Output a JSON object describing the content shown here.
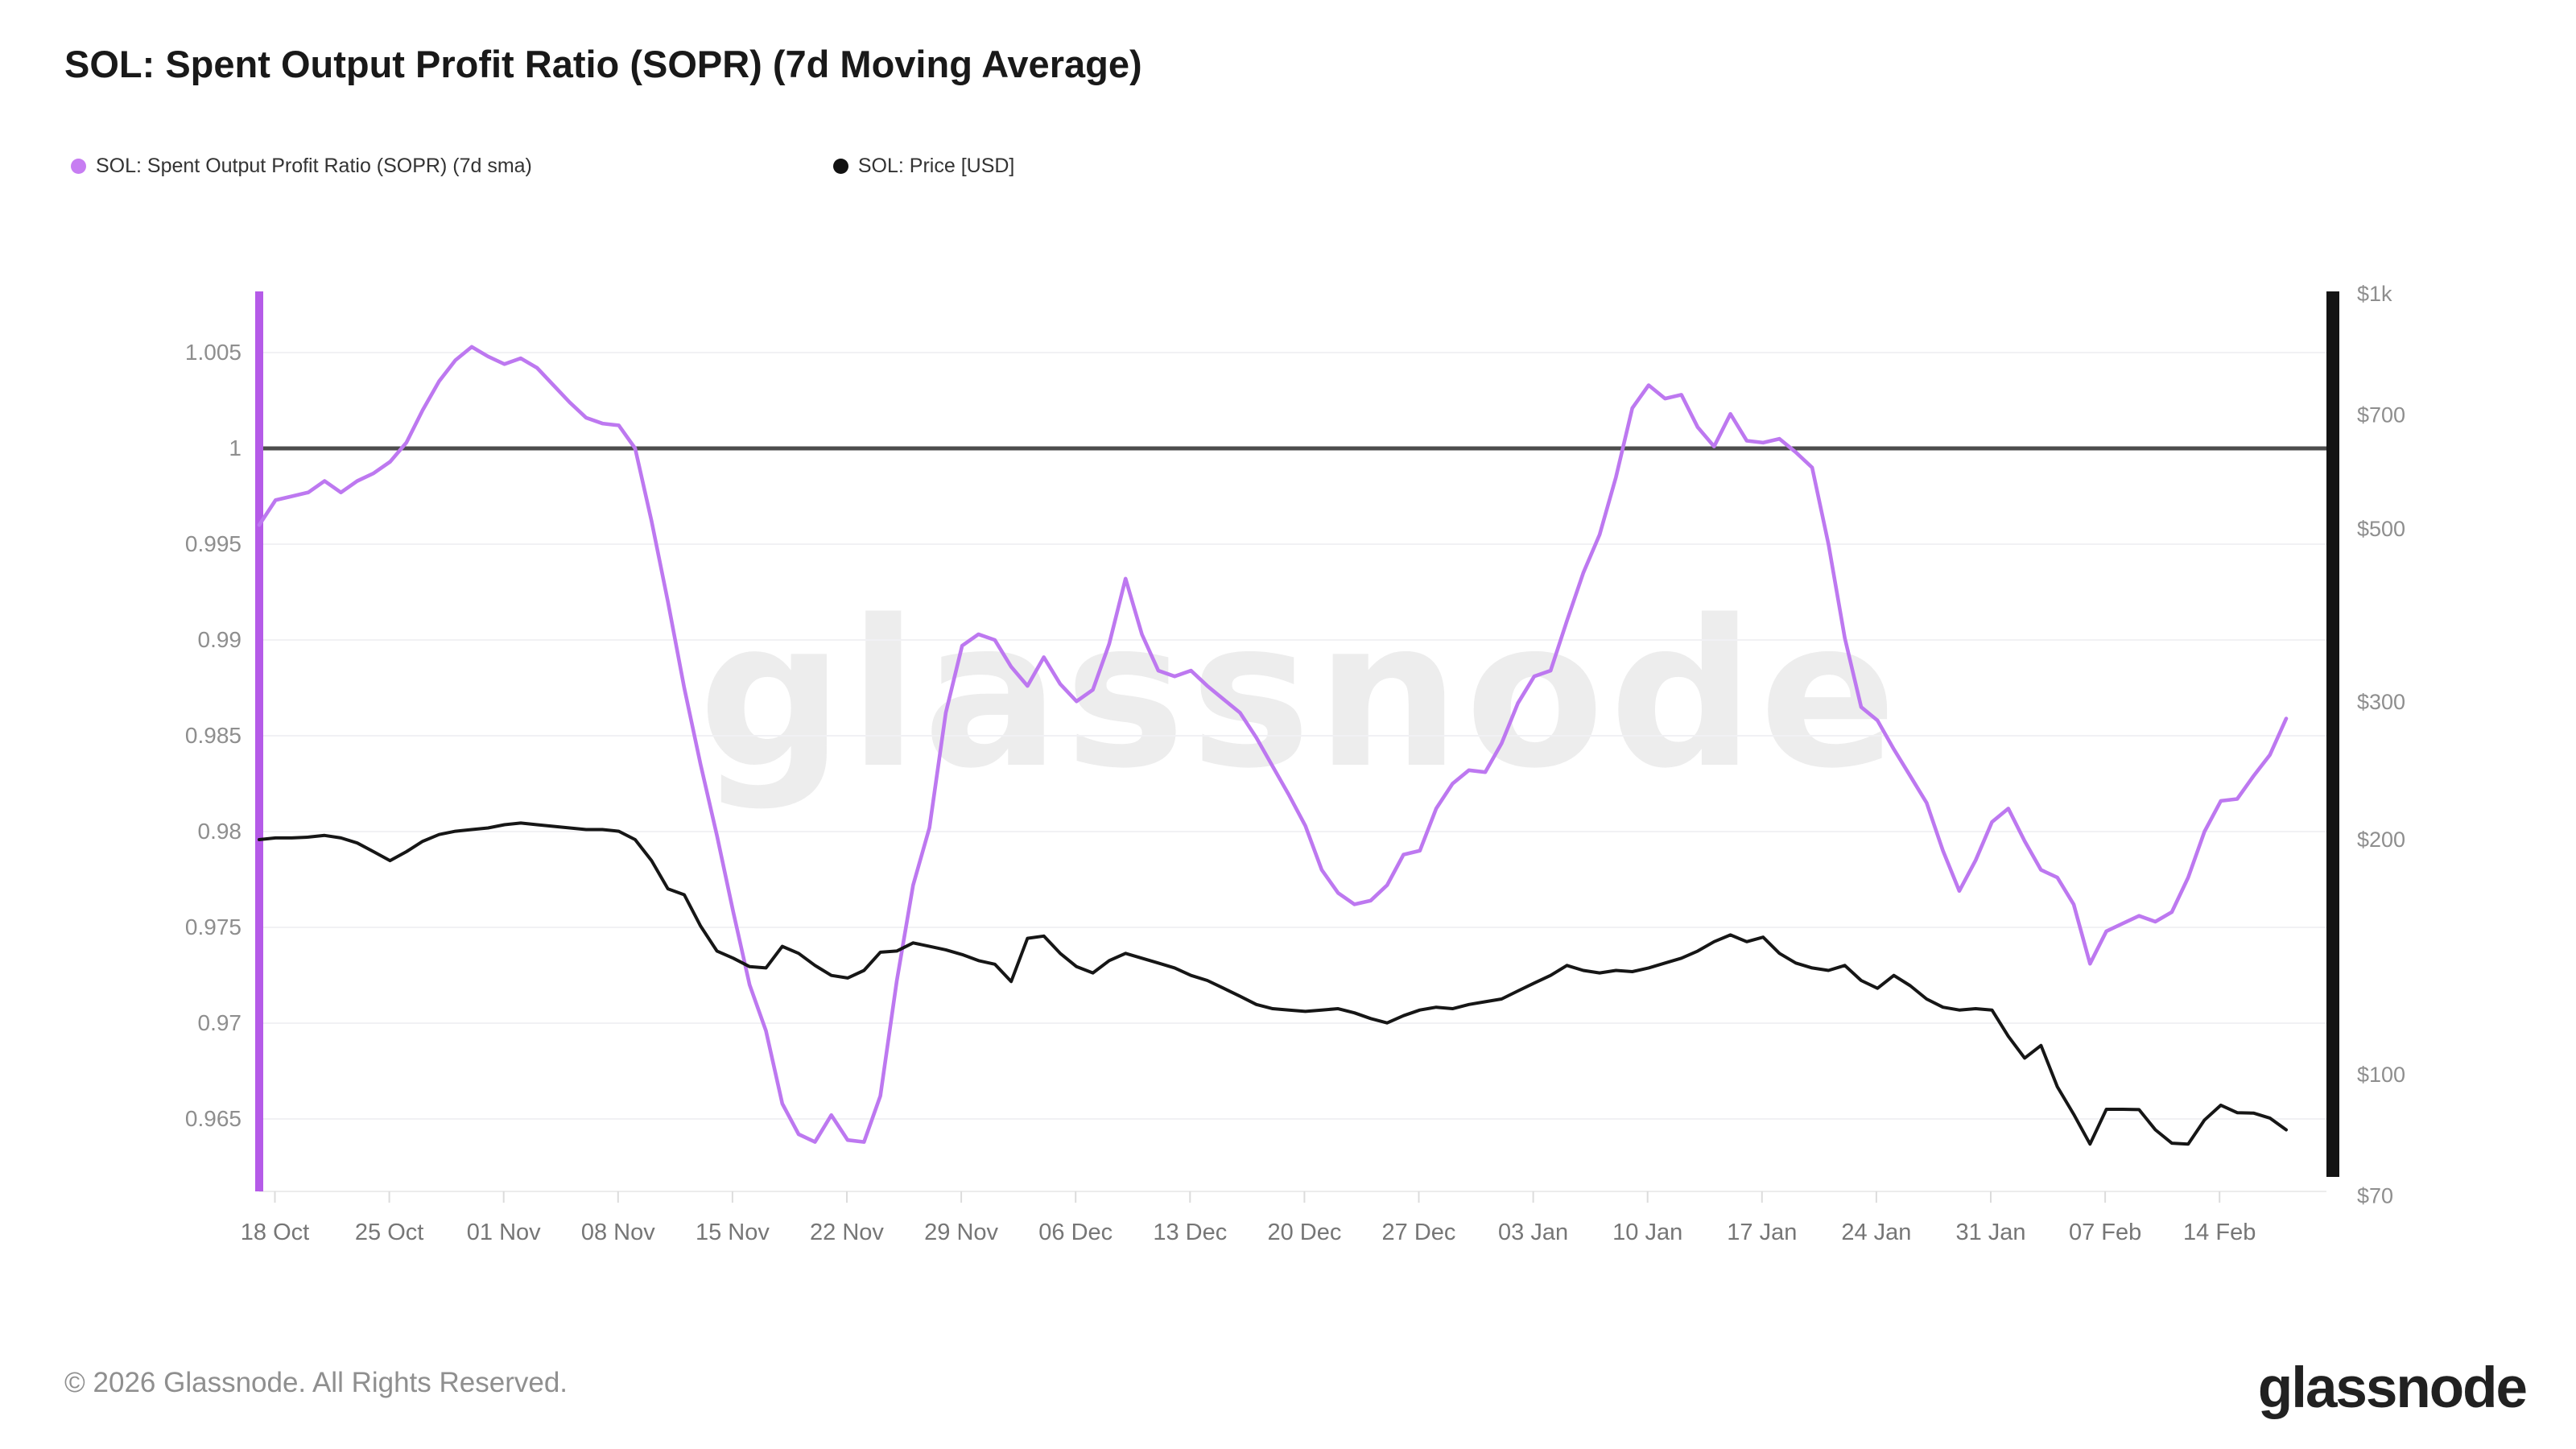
{
  "header": {
    "title": "SOL: Spent Output Profit Ratio (SOPR) (7d Moving Average)"
  },
  "legend": [
    {
      "label": "SOL: Spent Output Profit Ratio (SOPR) (7d sma)",
      "color": "#c77df2"
    },
    {
      "label": "SOL: Price [USD]",
      "color": "#111111"
    }
  ],
  "footer": {
    "copyright": "© 2026 Glassnode. All Rights Reserved."
  },
  "logo_text": "glassnode",
  "chart_data": {
    "type": "line",
    "title": "SOL: Spent Output Profit Ratio (SOPR) (7d Moving Average)",
    "watermark": "glassnode",
    "grid": "horizontal-only",
    "legend_position": "top-left",
    "baseline": {
      "axis": "left",
      "value": 1,
      "color": "#4d4d4d"
    },
    "x_axis": {
      "tick_labels": [
        "18 Oct",
        "25 Oct",
        "01 Nov",
        "08 Nov",
        "15 Nov",
        "22 Nov",
        "29 Nov",
        "06 Dec",
        "13 Dec",
        "20 Dec",
        "27 Dec",
        "03 Jan",
        "10 Jan",
        "17 Jan",
        "24 Jan",
        "31 Jan",
        "07 Feb",
        "14 Feb"
      ]
    },
    "y_axis_left": {
      "name": "SOPR (7d sma)",
      "range_shown": [
        0.9612,
        1.0078
      ],
      "ticks": [
        {
          "label": "1.005",
          "value": 1.005
        },
        {
          "label": "1",
          "value": 1.0
        },
        {
          "label": "0.995",
          "value": 0.995
        },
        {
          "label": "0.99",
          "value": 0.99
        },
        {
          "label": "0.985",
          "value": 0.985
        },
        {
          "label": "0.98",
          "value": 0.98
        },
        {
          "label": "0.975",
          "value": 0.975
        },
        {
          "label": "0.97",
          "value": 0.97
        },
        {
          "label": "0.965",
          "value": 0.965
        }
      ]
    },
    "y_axis_right": {
      "name": "SOL Price [USD]",
      "scale": "log",
      "ticks": [
        {
          "label": "$1k",
          "value": 1000
        },
        {
          "label": "$700",
          "value": 700
        },
        {
          "label": "$500",
          "value": 500
        },
        {
          "label": "$300",
          "value": 300
        },
        {
          "label": "$200",
          "value": 200
        },
        {
          "label": "$100",
          "value": 100
        },
        {
          "label": "$70",
          "value": 70
        }
      ]
    },
    "dates": [
      "17 Oct",
      "18 Oct",
      "19 Oct",
      "20 Oct",
      "21 Oct",
      "22 Oct",
      "23 Oct",
      "24 Oct",
      "25 Oct",
      "26 Oct",
      "27 Oct",
      "28 Oct",
      "29 Oct",
      "30 Oct",
      "31 Oct",
      "01 Nov",
      "02 Nov",
      "03 Nov",
      "04 Nov",
      "05 Nov",
      "06 Nov",
      "07 Nov",
      "08 Nov",
      "09 Nov",
      "10 Nov",
      "11 Nov",
      "12 Nov",
      "13 Nov",
      "14 Nov",
      "15 Nov",
      "16 Nov",
      "17 Nov",
      "18 Nov",
      "19 Nov",
      "20 Nov",
      "21 Nov",
      "22 Nov",
      "23 Nov",
      "24 Nov",
      "25 Nov",
      "26 Nov",
      "27 Nov",
      "28 Nov",
      "29 Nov",
      "30 Nov",
      "01 Dec",
      "02 Dec",
      "03 Dec",
      "04 Dec",
      "05 Dec",
      "06 Dec",
      "07 Dec",
      "08 Dec",
      "09 Dec",
      "10 Dec",
      "11 Dec",
      "12 Dec",
      "13 Dec",
      "14 Dec",
      "15 Dec",
      "16 Dec",
      "17 Dec",
      "18 Dec",
      "19 Dec",
      "20 Dec",
      "21 Dec",
      "22 Dec",
      "23 Dec",
      "24 Dec",
      "25 Dec",
      "26 Dec",
      "27 Dec",
      "28 Dec",
      "29 Dec",
      "30 Dec",
      "31 Dec",
      "01 Jan",
      "02 Jan",
      "03 Jan",
      "04 Jan",
      "05 Jan",
      "06 Jan",
      "07 Jan",
      "08 Jan",
      "09 Jan",
      "10 Jan",
      "11 Jan",
      "12 Jan",
      "13 Jan",
      "14 Jan",
      "15 Jan",
      "16 Jan",
      "17 Jan",
      "18 Jan",
      "19 Jan",
      "20 Jan",
      "21 Jan",
      "22 Jan",
      "23 Jan",
      "24 Jan",
      "25 Jan",
      "26 Jan",
      "27 Jan",
      "28 Jan",
      "29 Jan",
      "30 Jan",
      "31 Jan",
      "01 Feb",
      "02 Feb",
      "03 Feb",
      "04 Feb",
      "05 Feb",
      "06 Feb",
      "07 Feb",
      "08 Feb",
      "09 Feb",
      "10 Feb",
      "11 Feb",
      "12 Feb",
      "13 Feb",
      "14 Feb",
      "15 Feb",
      "16 Feb",
      "17 Feb",
      "18 Feb"
    ],
    "series": [
      {
        "name": "SOL: Spent Output Profit Ratio (SOPR) (7d sma)",
        "axis": "left",
        "color": "#bd78f0",
        "values": [
          0.996,
          0.9973,
          0.9975,
          0.9977,
          0.9983,
          0.9977,
          0.9983,
          0.9987,
          0.9993,
          1.0003,
          1.002,
          1.0035,
          1.0046,
          1.0053,
          1.0048,
          1.0044,
          1.0047,
          1.0042,
          1.0033,
          1.0024,
          1.0016,
          1.0013,
          1.0012,
          1.0,
          0.9962,
          0.992,
          0.9875,
          0.9835,
          0.9798,
          0.9758,
          0.972,
          0.9696,
          0.9658,
          0.9642,
          0.9638,
          0.9652,
          0.9639,
          0.9638,
          0.9662,
          0.9722,
          0.9772,
          0.9802,
          0.9862,
          0.9897,
          0.9903,
          0.99,
          0.9886,
          0.9876,
          0.9891,
          0.9877,
          0.9868,
          0.9874,
          0.9898,
          0.9932,
          0.9903,
          0.9884,
          0.9881,
          0.9884,
          0.9876,
          0.9869,
          0.9862,
          0.9849,
          0.9834,
          0.9819,
          0.9803,
          0.978,
          0.9768,
          0.9762,
          0.9764,
          0.9772,
          0.9788,
          0.979,
          0.9812,
          0.9825,
          0.9832,
          0.9831,
          0.9846,
          0.9867,
          0.9881,
          0.9884,
          0.991,
          0.9935,
          0.9955,
          0.9985,
          1.0021,
          1.0033,
          1.0026,
          1.0028,
          1.0011,
          1.0001,
          1.0018,
          1.0004,
          1.0003,
          1.0005,
          0.9998,
          0.999,
          0.995,
          0.9901,
          0.9865,
          0.9858,
          0.9843,
          0.9829,
          0.9815,
          0.979,
          0.9769,
          0.9785,
          0.9805,
          0.9812,
          0.9795,
          0.978,
          0.9776,
          0.9762,
          0.9731,
          0.9748,
          0.9752,
          0.9756,
          0.9753,
          0.9758,
          0.9776,
          0.98,
          0.9816,
          0.9817,
          0.9829,
          0.984,
          0.9859
        ]
      },
      {
        "name": "SOL: Price [USD]",
        "axis": "right",
        "color": "#161616",
        "values": [
          200,
          201,
          201,
          201.5,
          202.5,
          201,
          198,
          193,
          188,
          193,
          199,
          203,
          205,
          206,
          207,
          209,
          210,
          209,
          208,
          207,
          206,
          206,
          205,
          200,
          188,
          173,
          170,
          155,
          144,
          141,
          137.5,
          137,
          146,
          143,
          138,
          134,
          133,
          136,
          143.5,
          144,
          147.5,
          146,
          144.5,
          142.5,
          140,
          138.5,
          131.6,
          149.5,
          150.5,
          143,
          137.5,
          135,
          140,
          143,
          141,
          139,
          137,
          134,
          132,
          129,
          126,
          123,
          121.5,
          121,
          120.5,
          121,
          121.5,
          120,
          118,
          116.5,
          119,
          121,
          122,
          121.5,
          123,
          124,
          125,
          128,
          131,
          134,
          138,
          136,
          135,
          136,
          135.5,
          137,
          139,
          141,
          144,
          148,
          151,
          148,
          150,
          143,
          139,
          137,
          136,
          138,
          132,
          129,
          134,
          130,
          125,
          122,
          121,
          121.5,
          121,
          112,
          105,
          109,
          96.5,
          89,
          81.5,
          90.3,
          90.3,
          90.2,
          85,
          81.7,
          81.5,
          87.5,
          91.4,
          89.4,
          89.3,
          88,
          85
        ]
      }
    ]
  }
}
